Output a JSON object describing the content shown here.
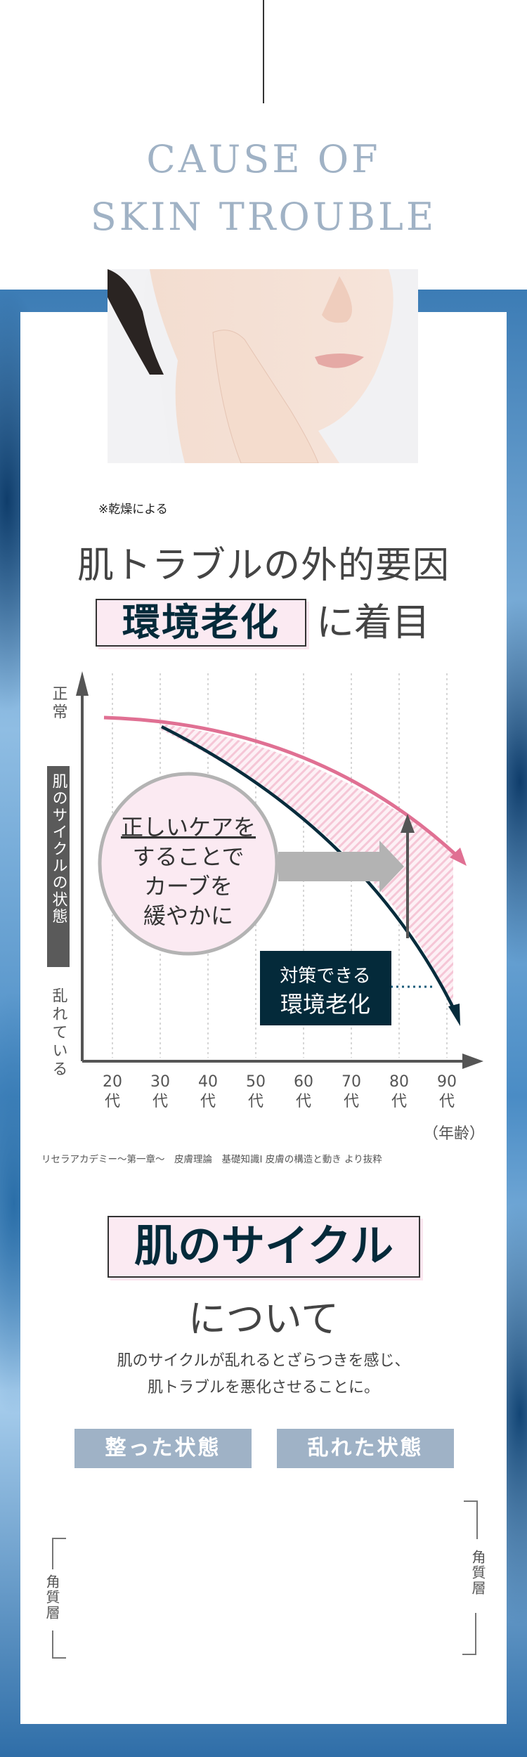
{
  "header": {
    "title_line1": "CAUSE OF",
    "title_line2": "SKIN TROUBLE"
  },
  "intro": {
    "note": "※乾燥による",
    "title": "肌トラブルの外的要因",
    "highlight": "環境老化",
    "title_suffix": "に着目"
  },
  "diagram": {
    "y_top_label": "正常",
    "y_axis_label": "肌のサイクルの状態",
    "y_bottom_label": "乱れている",
    "x_ticks": [
      {
        "num": "20",
        "unit": "代"
      },
      {
        "num": "30",
        "unit": "代"
      },
      {
        "num": "40",
        "unit": "代"
      },
      {
        "num": "50",
        "unit": "代"
      },
      {
        "num": "60",
        "unit": "代"
      },
      {
        "num": "70",
        "unit": "代"
      },
      {
        "num": "80",
        "unit": "代"
      },
      {
        "num": "90",
        "unit": "代"
      }
    ],
    "x_axis_label": "（年齢）",
    "bubble_lines": [
      "正しいケアを",
      "することで",
      "カーブを",
      "緩やかに"
    ],
    "callout_line1": "対策できる",
    "callout_line2": "環境老化",
    "colors": {
      "ideal_curve": "#e07093",
      "actual_curve": "#062c3c",
      "hatch": "#f5c6d6",
      "callout_bg": "#042a3a"
    }
  },
  "source": "リセラアカデミー〜第一章〜　皮膚理論　基礎知識Ⅰ 皮膚の構造と動き より抜粋",
  "cycle": {
    "title": "肌のサイクル",
    "subtitle": "について",
    "body_line1": "肌のサイクルが乱れるとざらつきを感じ、",
    "body_line2": "肌トラブルを悪化させることに。",
    "tab_normal": "整った状態",
    "tab_disturbed": "乱れた状態",
    "layer_label": "角質層"
  }
}
